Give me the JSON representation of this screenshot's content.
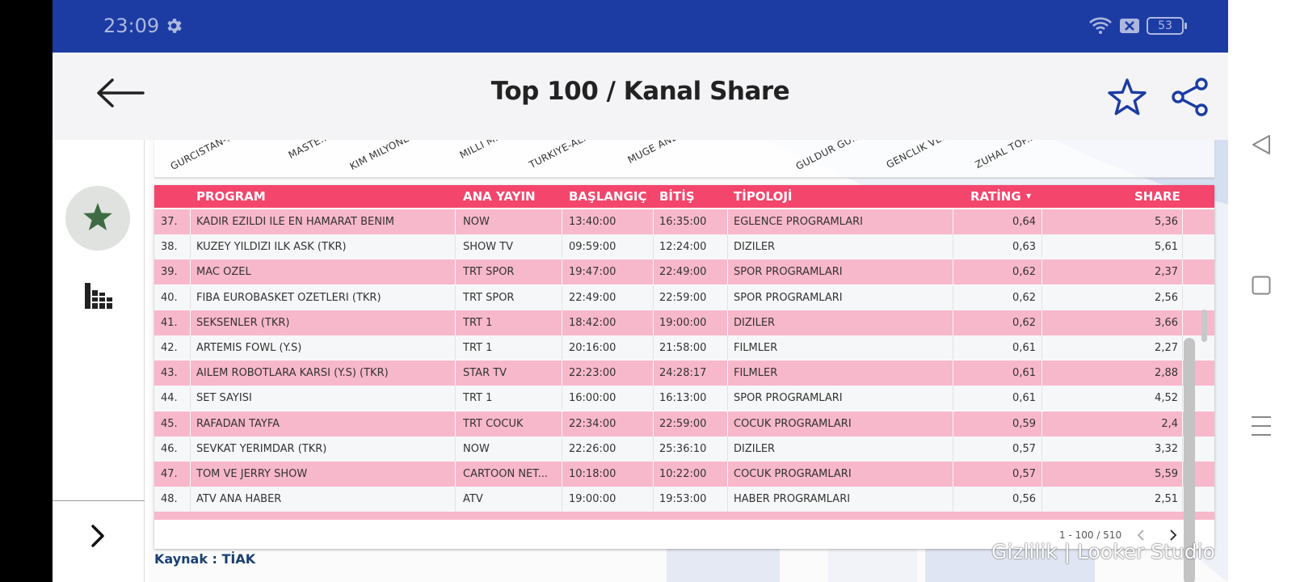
{
  "status_bar": {
    "time": "23:09",
    "battery": "53",
    "icons": [
      "gear-icon",
      "wifi-icon",
      "xbox-icon",
      "battery-icon"
    ]
  },
  "app_bar": {
    "title": "Top 100  / Kanal Share",
    "back_icon": "arrow-left-icon",
    "favorite_icon": "star-outline-icon",
    "share_icon": "share-icon",
    "accent_color": "#1c3ca4"
  },
  "left_rail": {
    "items": [
      "star-filled-icon",
      "bar-chart-icon"
    ],
    "expand_icon": "chevron-right-icon",
    "star_color": "#3e6b44"
  },
  "chart_strip": {
    "labels": [
      "GURCISTAN-...",
      "MASTE...",
      "KIM MILYONE...",
      "MILLI M...",
      "TURKIYE-AL...",
      "MUGE ANL...",
      "GULDUR GU...",
      "GENCLIK VE...",
      "ZUHAL TOP..."
    ]
  },
  "table": {
    "header_color": "#f4456c",
    "columns": {
      "program": "PROGRAM",
      "channel": "ANA YAYIN",
      "start": "BAŞLANGIÇ",
      "end": "BİTİŞ",
      "type": "TİPOLOJİ",
      "rating": "RATİNG",
      "share": "SHARE"
    },
    "sort_indicator": "▼",
    "rows": [
      {
        "rank": "37.",
        "program": "KADIR EZILDI ILE EN HAMARAT BENIM",
        "channel": "NOW",
        "start": "13:40:00",
        "end": "16:35:00",
        "type": "EGLENCE PROGRAMLARI",
        "rating": "0,64",
        "share": "5,36"
      },
      {
        "rank": "38.",
        "program": "KUZEY YILDIZI ILK ASK (TKR)",
        "channel": "SHOW TV",
        "start": "09:59:00",
        "end": "12:24:00",
        "type": "DIZILER",
        "rating": "0,63",
        "share": "5,61"
      },
      {
        "rank": "39.",
        "program": "MAC OZEL",
        "channel": "TRT SPOR",
        "start": "19:47:00",
        "end": "22:49:00",
        "type": "SPOR PROGRAMLARI",
        "rating": "0,62",
        "share": "2,37"
      },
      {
        "rank": "40.",
        "program": "FIBA EUROBASKET OZETLERI (TKR)",
        "channel": "TRT SPOR",
        "start": "22:49:00",
        "end": "22:59:00",
        "type": "SPOR PROGRAMLARI",
        "rating": "0,62",
        "share": "2,56"
      },
      {
        "rank": "41.",
        "program": "SEKSENLER (TKR)",
        "channel": "TRT 1",
        "start": "18:42:00",
        "end": "19:00:00",
        "type": "DIZILER",
        "rating": "0,62",
        "share": "3,66"
      },
      {
        "rank": "42.",
        "program": "ARTEMIS FOWL (Y.S)",
        "channel": "TRT 1",
        "start": "20:16:00",
        "end": "21:58:00",
        "type": "FILMLER",
        "rating": "0,61",
        "share": "2,27"
      },
      {
        "rank": "43.",
        "program": "AILEM ROBOTLARA KARSI (Y.S) (TKR)",
        "channel": "STAR TV",
        "start": "22:23:00",
        "end": "24:28:17",
        "type": "FILMLER",
        "rating": "0,61",
        "share": "2,88"
      },
      {
        "rank": "44.",
        "program": "SET SAYISI",
        "channel": "TRT 1",
        "start": "16:00:00",
        "end": "16:13:00",
        "type": "SPOR PROGRAMLARI",
        "rating": "0,61",
        "share": "4,52"
      },
      {
        "rank": "45.",
        "program": "RAFADAN TAYFA",
        "channel": "TRT COCUK",
        "start": "22:34:00",
        "end": "22:59:00",
        "type": "COCUK PROGRAMLARI",
        "rating": "0,59",
        "share": "2,4"
      },
      {
        "rank": "46.",
        "program": "SEVKAT YERIMDAR (TKR)",
        "channel": "NOW",
        "start": "22:26:00",
        "end": "25:36:10",
        "type": "DIZILER",
        "rating": "0,57",
        "share": "3,32"
      },
      {
        "rank": "47.",
        "program": "TOM VE JERRY SHOW",
        "channel": "CARTOON NET...",
        "start": "10:18:00",
        "end": "10:22:00",
        "type": "COCUK PROGRAMLARI",
        "rating": "0,57",
        "share": "5,59"
      },
      {
        "rank": "48.",
        "program": "ATV ANA HABER",
        "channel": "ATV",
        "start": "19:00:00",
        "end": "19:53:00",
        "type": "HABER PROGRAMLARI",
        "rating": "0,56",
        "share": "2,51"
      }
    ],
    "pagination": "1 - 100 / 510",
    "row_colors": {
      "odd": "#f8b8cb",
      "even": "#f6f7f8"
    }
  },
  "source": "Kaynak : TİAK",
  "watermark": "Gizlilik  |  Looker Studio",
  "nav_bar": {
    "icons": [
      "triangle-back-icon",
      "square-home-icon",
      "menu-lines-icon"
    ]
  }
}
